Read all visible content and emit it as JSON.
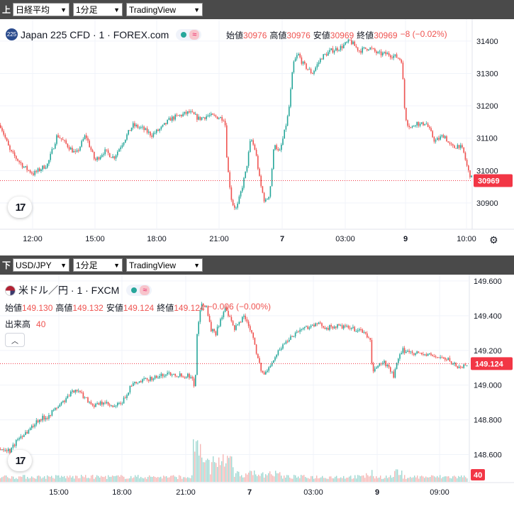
{
  "top_bar": {
    "tag": "上",
    "instrument": "日経平均",
    "interval": "1分足",
    "provider": "TradingView"
  },
  "bottom_bar": {
    "tag": "下",
    "instrument": "USD/JPY",
    "interval": "1分足",
    "provider": "TradingView"
  },
  "top_chart": {
    "symbol_badge": "225",
    "title": "Japan 225 CFD · 1 · FOREX.com",
    "ohlc": {
      "open_label": "始値",
      "open": "30976",
      "high_label": "高値",
      "high": "30976",
      "low_label": "安値",
      "low": "30969",
      "close_label": "終値",
      "close": "30969",
      "change": "−8 (−0.02%)"
    },
    "price_tag": "30969",
    "logo_text": "17"
  },
  "bottom_chart": {
    "title": "米ドル／円 · 1 · FXCM",
    "ohlc": {
      "open_label": "始値",
      "open": "149.130",
      "high_label": "高値",
      "high": "149.132",
      "low_label": "安値",
      "low": "149.124",
      "close_label": "終値",
      "close": "149.124",
      "change": "−0.006 (−0.00%)"
    },
    "volume": {
      "label": "出来高",
      "value": "40"
    },
    "collapse_icon": "chevron-up-icon",
    "price_tag": "149.124",
    "volume_tag": "40",
    "logo_text": "17"
  },
  "colors": {
    "up": "#26a69a",
    "down": "#ef5350",
    "last_price": "#f23645",
    "grid": "#f0f3fa",
    "text": "#131722",
    "bar_bg": "#4a4a4a"
  },
  "chart_data": [
    {
      "type": "candlestick",
      "title": "Japan 225 CFD · 1 · FOREX.com",
      "x_ticks": [
        "12:00",
        "15:00",
        "18:00",
        "21:00",
        "7",
        "03:00",
        "9",
        "10:00"
      ],
      "y_ticks": [
        30900,
        31000,
        31100,
        31200,
        31300,
        31400
      ],
      "ylim": [
        30810,
        31450
      ],
      "last_price": 30969,
      "path_points": [
        {
          "x": 0,
          "y": 31140
        },
        {
          "x": 0.02,
          "y": 31060
        },
        {
          "x": 0.05,
          "y": 31010
        },
        {
          "x": 0.07,
          "y": 30990
        },
        {
          "x": 0.1,
          "y": 31020
        },
        {
          "x": 0.12,
          "y": 31110
        },
        {
          "x": 0.14,
          "y": 31080
        },
        {
          "x": 0.16,
          "y": 31050
        },
        {
          "x": 0.18,
          "y": 31110
        },
        {
          "x": 0.2,
          "y": 31030
        },
        {
          "x": 0.22,
          "y": 31060
        },
        {
          "x": 0.24,
          "y": 31040
        },
        {
          "x": 0.26,
          "y": 31090
        },
        {
          "x": 0.28,
          "y": 31140
        },
        {
          "x": 0.3,
          "y": 31130
        },
        {
          "x": 0.32,
          "y": 31110
        },
        {
          "x": 0.34,
          "y": 31130
        },
        {
          "x": 0.36,
          "y": 31160
        },
        {
          "x": 0.38,
          "y": 31170
        },
        {
          "x": 0.4,
          "y": 31180
        },
        {
          "x": 0.42,
          "y": 31160
        },
        {
          "x": 0.44,
          "y": 31170
        },
        {
          "x": 0.46,
          "y": 31165
        },
        {
          "x": 0.475,
          "y": 31160
        },
        {
          "x": 0.48,
          "y": 31020
        },
        {
          "x": 0.49,
          "y": 30900
        },
        {
          "x": 0.5,
          "y": 30880
        },
        {
          "x": 0.51,
          "y": 30940
        },
        {
          "x": 0.52,
          "y": 31000
        },
        {
          "x": 0.53,
          "y": 31100
        },
        {
          "x": 0.54,
          "y": 31060
        },
        {
          "x": 0.55,
          "y": 30960
        },
        {
          "x": 0.56,
          "y": 30900
        },
        {
          "x": 0.57,
          "y": 30930
        },
        {
          "x": 0.58,
          "y": 31090
        },
        {
          "x": 0.59,
          "y": 31050
        },
        {
          "x": 0.6,
          "y": 31110
        },
        {
          "x": 0.61,
          "y": 31180
        },
        {
          "x": 0.62,
          "y": 31330
        },
        {
          "x": 0.63,
          "y": 31360
        },
        {
          "x": 0.64,
          "y": 31330
        },
        {
          "x": 0.66,
          "y": 31300
        },
        {
          "x": 0.68,
          "y": 31350
        },
        {
          "x": 0.7,
          "y": 31370
        },
        {
          "x": 0.72,
          "y": 31380
        },
        {
          "x": 0.74,
          "y": 31400
        },
        {
          "x": 0.76,
          "y": 31370
        },
        {
          "x": 0.78,
          "y": 31380
        },
        {
          "x": 0.8,
          "y": 31360
        },
        {
          "x": 0.82,
          "y": 31360
        },
        {
          "x": 0.84,
          "y": 31350
        },
        {
          "x": 0.85,
          "y": 31340
        },
        {
          "x": 0.855,
          "y": 31200
        },
        {
          "x": 0.86,
          "y": 31150
        },
        {
          "x": 0.87,
          "y": 31130
        },
        {
          "x": 0.88,
          "y": 31150
        },
        {
          "x": 0.89,
          "y": 31140
        },
        {
          "x": 0.9,
          "y": 31150
        },
        {
          "x": 0.91,
          "y": 31120
        },
        {
          "x": 0.92,
          "y": 31090
        },
        {
          "x": 0.93,
          "y": 31100
        },
        {
          "x": 0.94,
          "y": 31110
        },
        {
          "x": 0.95,
          "y": 31080
        },
        {
          "x": 0.96,
          "y": 31070
        },
        {
          "x": 0.97,
          "y": 31080
        },
        {
          "x": 0.98,
          "y": 31060
        },
        {
          "x": 0.99,
          "y": 31000
        },
        {
          "x": 1.0,
          "y": 30969
        }
      ]
    },
    {
      "type": "candlestick",
      "title": "米ドル／円 · 1 · FXCM",
      "x_ticks": [
        "15:00",
        "18:00",
        "21:00",
        "7",
        "03:00",
        "9",
        "09:00"
      ],
      "y_ticks": [
        148.6,
        148.8,
        149.0,
        149.2,
        149.4,
        149.6
      ],
      "y_tick_labels": [
        "148.600",
        "148.800",
        "149.000",
        "149.200",
        "149.400",
        "149.600"
      ],
      "ylim": [
        148.5,
        149.62
      ],
      "last_price": 149.124,
      "last_volume": 40,
      "path_points": [
        {
          "x": 0,
          "y": 148.63
        },
        {
          "x": 0.02,
          "y": 148.62
        },
        {
          "x": 0.04,
          "y": 148.7
        },
        {
          "x": 0.06,
          "y": 148.74
        },
        {
          "x": 0.08,
          "y": 148.8
        },
        {
          "x": 0.1,
          "y": 148.82
        },
        {
          "x": 0.12,
          "y": 148.87
        },
        {
          "x": 0.14,
          "y": 148.92
        },
        {
          "x": 0.16,
          "y": 148.98
        },
        {
          "x": 0.18,
          "y": 148.93
        },
        {
          "x": 0.2,
          "y": 148.88
        },
        {
          "x": 0.22,
          "y": 148.9
        },
        {
          "x": 0.24,
          "y": 148.87
        },
        {
          "x": 0.26,
          "y": 148.9
        },
        {
          "x": 0.28,
          "y": 149.0
        },
        {
          "x": 0.3,
          "y": 149.02
        },
        {
          "x": 0.32,
          "y": 149.04
        },
        {
          "x": 0.34,
          "y": 149.05
        },
        {
          "x": 0.36,
          "y": 149.07
        },
        {
          "x": 0.38,
          "y": 149.06
        },
        {
          "x": 0.41,
          "y": 149.05
        },
        {
          "x": 0.415,
          "y": 148.95
        },
        {
          "x": 0.42,
          "y": 149.3
        },
        {
          "x": 0.43,
          "y": 149.48
        },
        {
          "x": 0.44,
          "y": 149.45
        },
        {
          "x": 0.45,
          "y": 149.32
        },
        {
          "x": 0.46,
          "y": 149.3
        },
        {
          "x": 0.47,
          "y": 149.38
        },
        {
          "x": 0.48,
          "y": 149.44
        },
        {
          "x": 0.5,
          "y": 149.32
        },
        {
          "x": 0.52,
          "y": 149.4
        },
        {
          "x": 0.53,
          "y": 149.35
        },
        {
          "x": 0.54,
          "y": 149.28
        },
        {
          "x": 0.55,
          "y": 149.15
        },
        {
          "x": 0.56,
          "y": 149.06
        },
        {
          "x": 0.57,
          "y": 149.08
        },
        {
          "x": 0.58,
          "y": 149.14
        },
        {
          "x": 0.6,
          "y": 149.22
        },
        {
          "x": 0.62,
          "y": 149.28
        },
        {
          "x": 0.64,
          "y": 149.32
        },
        {
          "x": 0.66,
          "y": 149.34
        },
        {
          "x": 0.68,
          "y": 149.35
        },
        {
          "x": 0.7,
          "y": 149.33
        },
        {
          "x": 0.72,
          "y": 149.34
        },
        {
          "x": 0.74,
          "y": 149.33
        },
        {
          "x": 0.76,
          "y": 149.32
        },
        {
          "x": 0.78,
          "y": 149.3
        },
        {
          "x": 0.79,
          "y": 149.25
        },
        {
          "x": 0.795,
          "y": 149.05
        },
        {
          "x": 0.8,
          "y": 149.1
        },
        {
          "x": 0.81,
          "y": 149.12
        },
        {
          "x": 0.82,
          "y": 149.13
        },
        {
          "x": 0.83,
          "y": 149.1
        },
        {
          "x": 0.84,
          "y": 149.05
        },
        {
          "x": 0.85,
          "y": 149.15
        },
        {
          "x": 0.86,
          "y": 149.2
        },
        {
          "x": 0.88,
          "y": 149.19
        },
        {
          "x": 0.9,
          "y": 149.18
        },
        {
          "x": 0.92,
          "y": 149.17
        },
        {
          "x": 0.94,
          "y": 149.16
        },
        {
          "x": 0.96,
          "y": 149.14
        },
        {
          "x": 0.98,
          "y": 149.1
        },
        {
          "x": 1.0,
          "y": 149.124
        }
      ]
    }
  ]
}
